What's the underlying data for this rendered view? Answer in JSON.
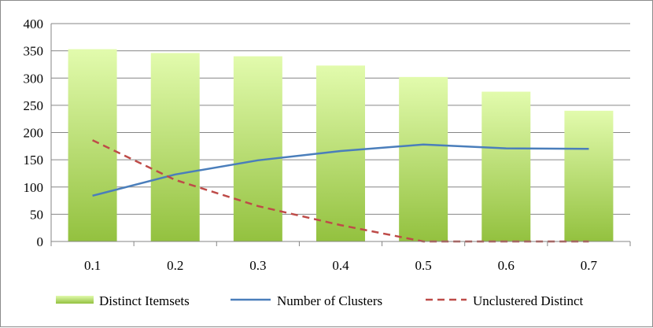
{
  "chart_data": {
    "type": "bar",
    "categories": [
      "0.1",
      "0.2",
      "0.3",
      "0.4",
      "0.5",
      "0.6",
      "0.7"
    ],
    "ylim": [
      0,
      400
    ],
    "yticks": [
      0,
      50,
      100,
      150,
      200,
      250,
      300,
      350,
      400
    ],
    "grid": true,
    "legend_position": "bottom",
    "series": [
      {
        "name": "Distinct Itemsets",
        "kind": "bar",
        "color": "#9bc53d",
        "values": [
          353,
          346,
          340,
          323,
          302,
          275,
          240
        ]
      },
      {
        "name": "Number of Clusters",
        "kind": "line",
        "color": "#4a7ebb",
        "values": [
          84,
          123,
          149,
          166,
          178,
          171,
          170
        ]
      },
      {
        "name": "Unclustered Distinct",
        "kind": "dashed-line",
        "color": "#be4b48",
        "values": [
          186,
          113,
          65,
          30,
          0,
          0,
          0
        ]
      }
    ]
  }
}
